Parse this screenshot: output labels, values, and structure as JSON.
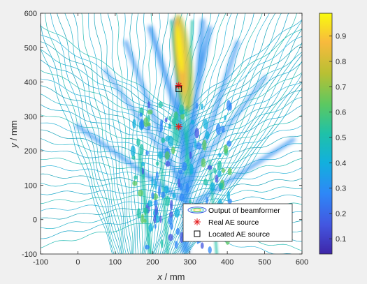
{
  "chart_data": {
    "type": "heatmap",
    "title": "",
    "xlabel": {
      "var": "x",
      "unit": " / mm"
    },
    "ylabel": {
      "var": "y",
      "unit": " / mm"
    },
    "xlim": [
      -100,
      600
    ],
    "ylim": [
      -100,
      600
    ],
    "xticks": [
      "-100",
      "0",
      "100",
      "200",
      "300",
      "400",
      "500",
      "600"
    ],
    "yticks": [
      "-100",
      "0",
      "100",
      "200",
      "300",
      "400",
      "500",
      "600"
    ],
    "colorbar": {
      "limits": [
        0.04,
        0.99
      ],
      "ticks": [
        "0.1",
        "0.2",
        "0.3",
        "0.4",
        "0.5",
        "0.6",
        "0.7",
        "0.8",
        "0.9"
      ]
    },
    "series": [
      {
        "name": "Output of beamformer",
        "kind": "contour"
      },
      {
        "name": "Real AE source",
        "kind": "marker",
        "color": "#e41a1c",
        "points": [
          {
            "x": 270,
            "y": 390
          },
          {
            "x": 270,
            "y": 270
          }
        ]
      },
      {
        "name": "Located AE source",
        "kind": "marker",
        "color": "#000000",
        "points": [
          {
            "x": 270,
            "y": 380
          }
        ]
      }
    ],
    "legend_position": "bottom-right",
    "grid": false
  }
}
